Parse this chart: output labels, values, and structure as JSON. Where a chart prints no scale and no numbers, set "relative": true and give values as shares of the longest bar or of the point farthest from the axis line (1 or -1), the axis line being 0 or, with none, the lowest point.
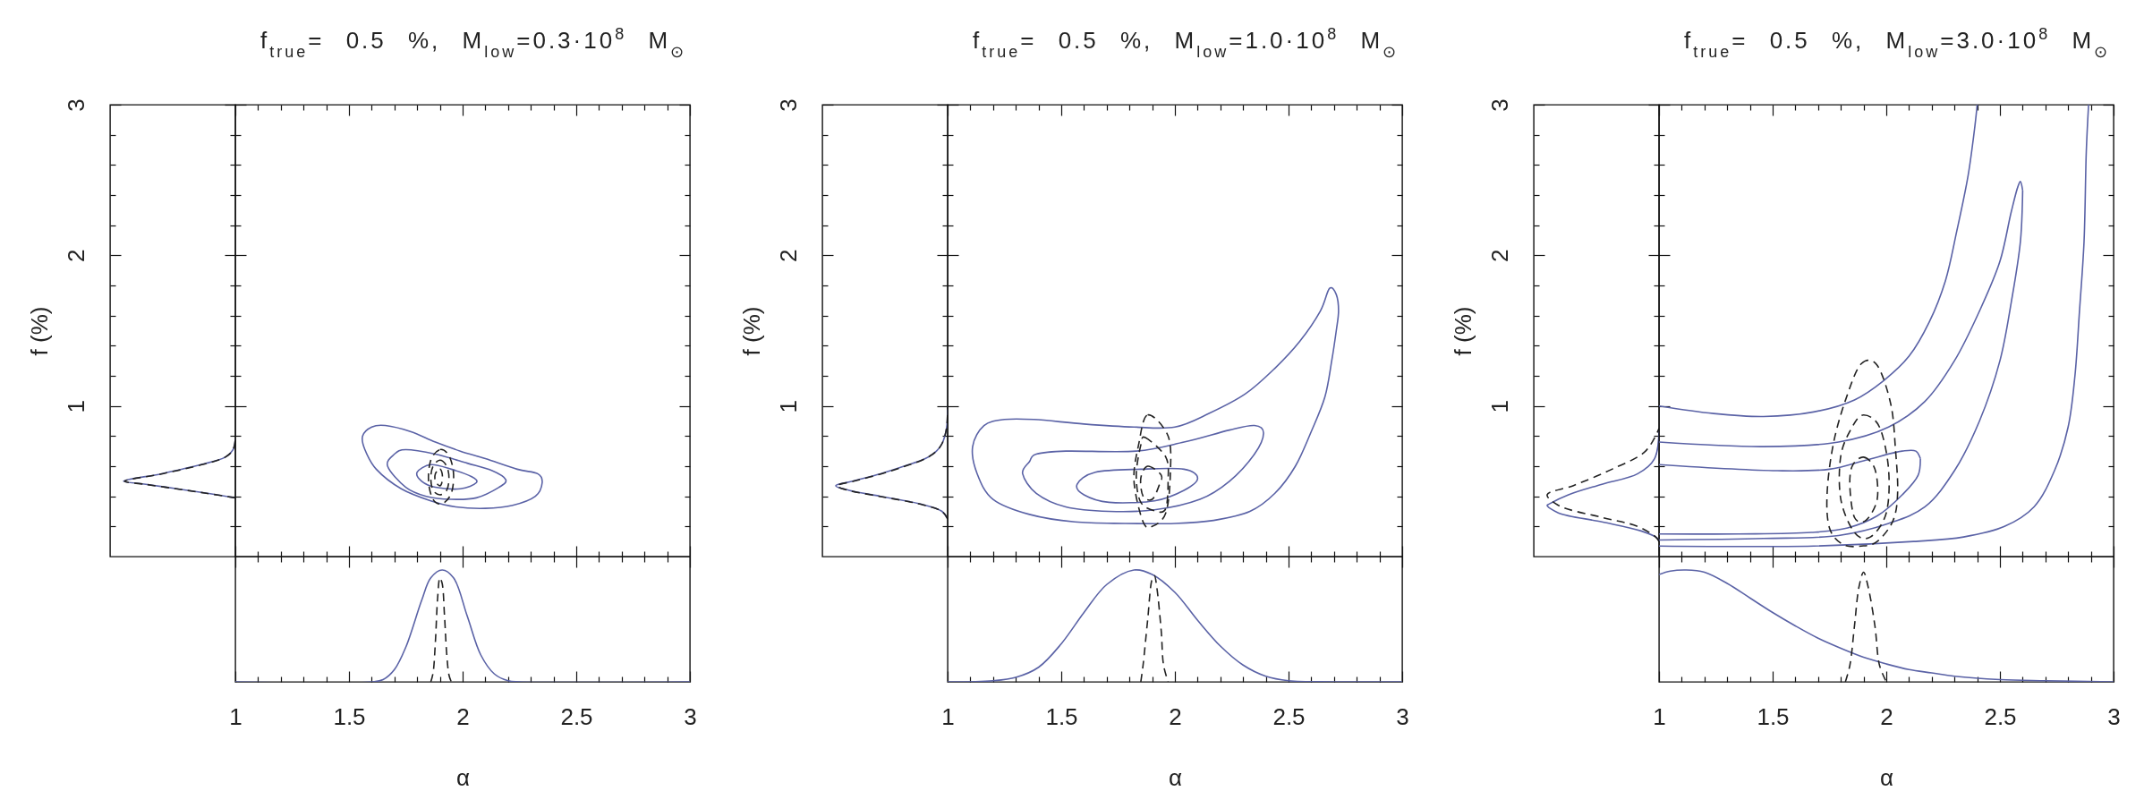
{
  "chart_data": [
    {
      "type": "line",
      "orientation": "horizontal",
      "relative": true,
      "ylabel": "f (%)",
      "tick_labels": "y",
      "ylim": [
        0,
        3
      ],
      "yticks": [
        {
          "value": 0.2,
          "label": null
        },
        {
          "value": 0.4,
          "label": null
        },
        {
          "value": 0.6,
          "label": null
        },
        {
          "value": 0.8,
          "label": null
        },
        1,
        {
          "value": 1.2,
          "label": null
        },
        {
          "value": 1.4,
          "label": null
        },
        {
          "value": 1.6,
          "label": null
        },
        {
          "value": 1.8,
          "label": null
        },
        2,
        {
          "value": 2.2,
          "label": null
        },
        {
          "value": 2.4,
          "label": null
        },
        {
          "value": 2.6,
          "label": null
        },
        {
          "value": 2.8,
          "label": null
        },
        3
      ],
      "series": [
        {
          "color": "#5a62a6",
          "line_style": "solid",
          "x": [
            0.39,
            0.42,
            0.45,
            0.48,
            0.5,
            0.55,
            0.61,
            0.66,
            0.71,
            0.78
          ],
          "values": [
            0,
            -0.25,
            -0.52,
            -0.8,
            -1,
            -0.66,
            -0.31,
            -0.09,
            -0.02,
            0
          ]
        },
        {
          "color": "#222222",
          "line_style": "dashed",
          "x": [
            0.39,
            0.42,
            0.45,
            0.48,
            0.5,
            0.55,
            0.61,
            0.66,
            0.71,
            0.78
          ],
          "values": [
            0,
            -0.26,
            -0.53,
            -0.81,
            -0.99,
            -0.65,
            -0.3,
            -0.09,
            -0.02,
            0
          ]
        }
      ]
    },
    {
      "type": "line",
      "title": "f$_{true}$= 0.5 %, M$_{low}$=0.3·10$^{8}$ M$_{⊙}$",
      "tick_labels": false,
      "xlim": [
        1,
        3
      ],
      "ylim": [
        0,
        3
      ],
      "xticks": [
        1,
        {
          "value": 1.1,
          "label": null
        },
        {
          "value": 1.2,
          "label": null
        },
        {
          "value": 1.3,
          "label": null
        },
        {
          "value": 1.4,
          "label": null
        },
        1.5,
        {
          "value": 1.6,
          "label": null
        },
        {
          "value": 1.7,
          "label": null
        },
        {
          "value": 1.8,
          "label": null
        },
        {
          "value": 1.9,
          "label": null
        },
        2,
        {
          "value": 2.1,
          "label": null
        },
        {
          "value": 2.2,
          "label": null
        },
        {
          "value": 2.3,
          "label": null
        },
        {
          "value": 2.4,
          "label": null
        },
        2.5,
        {
          "value": 2.6,
          "label": null
        },
        {
          "value": 2.7,
          "label": null
        },
        {
          "value": 2.8,
          "label": null
        },
        {
          "value": 2.9,
          "label": null
        },
        3
      ],
      "yticks": [
        {
          "value": 0.2,
          "label": null
        },
        {
          "value": 0.4,
          "label": null
        },
        {
          "value": 0.6,
          "label": null
        },
        {
          "value": 0.8,
          "label": null
        },
        1,
        {
          "value": 1.2,
          "label": null
        },
        {
          "value": 1.4,
          "label": null
        },
        {
          "value": 1.6,
          "label": null
        },
        {
          "value": 1.8,
          "label": null
        },
        2,
        {
          "value": 2.2,
          "label": null
        },
        {
          "value": 2.4,
          "label": null
        },
        {
          "value": 2.6,
          "label": null
        },
        {
          "value": 2.8,
          "label": null
        },
        3
      ]
    },
    {
      "type": "line",
      "relative": true,
      "xlabel": "α",
      "tick_labels": "x",
      "xlim": [
        1,
        3
      ],
      "xticks": [
        1,
        {
          "value": 1.1,
          "label": null
        },
        {
          "value": 1.2,
          "label": null
        },
        {
          "value": 1.3,
          "label": null
        },
        {
          "value": 1.4,
          "label": null
        },
        1.5,
        {
          "value": 1.6,
          "label": null
        },
        {
          "value": 1.7,
          "label": null
        },
        {
          "value": 1.8,
          "label": null
        },
        {
          "value": 1.9,
          "label": null
        },
        2,
        {
          "value": 2.1,
          "label": null
        },
        {
          "value": 2.2,
          "label": null
        },
        {
          "value": 2.3,
          "label": null
        },
        {
          "value": 2.4,
          "label": null
        },
        2.5,
        {
          "value": 2.6,
          "label": null
        },
        {
          "value": 2.7,
          "label": null
        },
        {
          "value": 2.8,
          "label": null
        },
        {
          "value": 2.9,
          "label": null
        },
        3
      ],
      "series": [
        {
          "color": "#5a62a6",
          "line_style": "solid",
          "x": [
            1,
            1.6,
            1.65,
            1.7,
            1.75,
            1.82,
            1.86,
            1.91,
            1.96,
            2.02,
            2.08,
            2.14,
            2.2,
            2.25,
            3
          ],
          "values": [
            0,
            0,
            0.02,
            0.11,
            0.31,
            0.73,
            0.93,
            1,
            0.93,
            0.59,
            0.24,
            0.07,
            0.01,
            0,
            0
          ]
        },
        {
          "color": "#222222",
          "line_style": "dashed",
          "x": [
            1.86,
            1.87,
            1.88,
            1.89,
            1.9,
            1.91,
            1.92,
            1.93,
            1.94,
            1.95
          ],
          "values": [
            0,
            0.08,
            0.35,
            0.75,
            0.93,
            0.88,
            0.6,
            0.25,
            0.06,
            0
          ]
        }
      ]
    },
    {
      "type": "line",
      "orientation": "horizontal",
      "relative": true,
      "ylabel": "f (%)",
      "tick_labels": "y",
      "ylim": [
        0,
        3
      ],
      "yticks": [
        {
          "value": 0.2,
          "label": null
        },
        {
          "value": 0.4,
          "label": null
        },
        {
          "value": 0.6,
          "label": null
        },
        {
          "value": 0.8,
          "label": null
        },
        1,
        {
          "value": 1.2,
          "label": null
        },
        {
          "value": 1.4,
          "label": null
        },
        {
          "value": 1.6,
          "label": null
        },
        {
          "value": 1.8,
          "label": null
        },
        2,
        {
          "value": 2.2,
          "label": null
        },
        {
          "value": 2.4,
          "label": null
        },
        {
          "value": 2.6,
          "label": null
        },
        {
          "value": 2.8,
          "label": null
        },
        3
      ],
      "series": [
        {
          "color": "#5a62a6",
          "line_style": "solid",
          "x": [
            0.25,
            0.3,
            0.35,
            0.4,
            0.44,
            0.47,
            0.5,
            0.55,
            0.6,
            0.65,
            0.7,
            0.75,
            0.85,
            1
          ],
          "values": [
            0,
            -0.05,
            -0.25,
            -0.6,
            -0.88,
            -1,
            -0.85,
            -0.6,
            -0.39,
            -0.2,
            -0.1,
            -0.05,
            -0.01,
            0
          ]
        },
        {
          "color": "#222222",
          "line_style": "dashed",
          "x": [
            0.25,
            0.3,
            0.35,
            0.4,
            0.44,
            0.47,
            0.5,
            0.55,
            0.6,
            0.65,
            0.7,
            0.75,
            0.85,
            1
          ],
          "values": [
            0,
            -0.05,
            -0.26,
            -0.61,
            -0.89,
            -0.99,
            -0.84,
            -0.59,
            -0.38,
            -0.2,
            -0.1,
            -0.05,
            -0.01,
            0
          ]
        }
      ]
    },
    {
      "type": "line",
      "title": "f$_{true}$= 0.5 %, M$_{low}$=1.0·10$^{8}$ M$_{⊙}$",
      "tick_labels": false,
      "xlim": [
        1,
        3
      ],
      "ylim": [
        0,
        3
      ],
      "xticks": [
        1,
        {
          "value": 1.1,
          "label": null
        },
        {
          "value": 1.2,
          "label": null
        },
        {
          "value": 1.3,
          "label": null
        },
        {
          "value": 1.4,
          "label": null
        },
        1.5,
        {
          "value": 1.6,
          "label": null
        },
        {
          "value": 1.7,
          "label": null
        },
        {
          "value": 1.8,
          "label": null
        },
        {
          "value": 1.9,
          "label": null
        },
        2,
        {
          "value": 2.1,
          "label": null
        },
        {
          "value": 2.2,
          "label": null
        },
        {
          "value": 2.3,
          "label": null
        },
        {
          "value": 2.4,
          "label": null
        },
        2.5,
        {
          "value": 2.6,
          "label": null
        },
        {
          "value": 2.7,
          "label": null
        },
        {
          "value": 2.8,
          "label": null
        },
        {
          "value": 2.9,
          "label": null
        },
        3
      ],
      "yticks": [
        {
          "value": 0.2,
          "label": null
        },
        {
          "value": 0.4,
          "label": null
        },
        {
          "value": 0.6,
          "label": null
        },
        {
          "value": 0.8,
          "label": null
        },
        1,
        {
          "value": 1.2,
          "label": null
        },
        {
          "value": 1.4,
          "label": null
        },
        {
          "value": 1.6,
          "label": null
        },
        {
          "value": 1.8,
          "label": null
        },
        2,
        {
          "value": 2.2,
          "label": null
        },
        {
          "value": 2.4,
          "label": null
        },
        {
          "value": 2.6,
          "label": null
        },
        {
          "value": 2.8,
          "label": null
        },
        3
      ]
    },
    {
      "type": "line",
      "relative": true,
      "xlabel": "α",
      "tick_labels": "x",
      "xlim": [
        1,
        3
      ],
      "xticks": [
        1,
        {
          "value": 1.1,
          "label": null
        },
        {
          "value": 1.2,
          "label": null
        },
        {
          "value": 1.3,
          "label": null
        },
        {
          "value": 1.4,
          "label": null
        },
        1.5,
        {
          "value": 1.6,
          "label": null
        },
        {
          "value": 1.7,
          "label": null
        },
        {
          "value": 1.8,
          "label": null
        },
        {
          "value": 1.9,
          "label": null
        },
        2,
        {
          "value": 2.1,
          "label": null
        },
        {
          "value": 2.2,
          "label": null
        },
        {
          "value": 2.3,
          "label": null
        },
        {
          "value": 2.4,
          "label": null
        },
        2.5,
        {
          "value": 2.6,
          "label": null
        },
        {
          "value": 2.7,
          "label": null
        },
        {
          "value": 2.8,
          "label": null
        },
        {
          "value": 2.9,
          "label": null
        },
        3
      ],
      "series": [
        {
          "color": "#5a62a6",
          "line_style": "solid",
          "x": [
            1,
            1.2,
            1.3,
            1.4,
            1.5,
            1.6,
            1.7,
            1.82,
            1.9,
            2,
            2.1,
            2.2,
            2.3,
            2.4,
            2.5,
            2.7,
            3
          ],
          "values": [
            0,
            0.01,
            0.04,
            0.13,
            0.34,
            0.62,
            0.87,
            1,
            0.96,
            0.8,
            0.55,
            0.32,
            0.15,
            0.05,
            0.01,
            0,
            0
          ]
        },
        {
          "color": "#222222",
          "line_style": "dashed",
          "x": [
            1.85,
            1.86,
            1.88,
            1.9,
            1.91,
            1.92,
            1.94,
            1.95,
            1.97
          ],
          "values": [
            0,
            0.15,
            0.55,
            0.92,
            0.95,
            0.85,
            0.45,
            0.15,
            0
          ]
        }
      ]
    },
    {
      "type": "line",
      "orientation": "horizontal",
      "relative": true,
      "ylabel": "f (%)",
      "tick_labels": "y",
      "ylim": [
        0,
        3
      ],
      "yticks": [
        {
          "value": 0.2,
          "label": null
        },
        {
          "value": 0.4,
          "label": null
        },
        {
          "value": 0.6,
          "label": null
        },
        {
          "value": 0.8,
          "label": null
        },
        1,
        {
          "value": 1.2,
          "label": null
        },
        {
          "value": 1.4,
          "label": null
        },
        {
          "value": 1.6,
          "label": null
        },
        {
          "value": 1.8,
          "label": null
        },
        2,
        {
          "value": 2.2,
          "label": null
        },
        {
          "value": 2.4,
          "label": null
        },
        {
          "value": 2.6,
          "label": null
        },
        {
          "value": 2.8,
          "label": null
        },
        3
      ],
      "series": [
        {
          "color": "#5a62a6",
          "line_style": "solid",
          "x": [
            0.1,
            0.12,
            0.17,
            0.23,
            0.29,
            0.34,
            0.35,
            0.41,
            0.48,
            0.55,
            0.65,
            0.84
          ],
          "values": [
            0,
            -0.01,
            -0.16,
            -0.51,
            -0.9,
            -1,
            -0.98,
            -0.81,
            -0.51,
            -0.19,
            -0.04,
            0
          ]
        },
        {
          "color": "#222222",
          "line_style": "dashed",
          "x": [
            0.1,
            0.13,
            0.2,
            0.26,
            0.34,
            0.41,
            0.47,
            0.58,
            0.7,
            0.85
          ],
          "values": [
            0,
            -0.03,
            -0.19,
            -0.51,
            -0.9,
            -1,
            -0.77,
            -0.42,
            -0.12,
            0
          ]
        }
      ]
    },
    {
      "type": "line",
      "title": "f$_{true}$= 0.5 %, M$_{low}$=3.0·10$^{8}$ M$_{⊙}$",
      "tick_labels": false,
      "xlim": [
        1,
        3
      ],
      "ylim": [
        0,
        3
      ],
      "xticks": [
        1,
        {
          "value": 1.1,
          "label": null
        },
        {
          "value": 1.2,
          "label": null
        },
        {
          "value": 1.3,
          "label": null
        },
        {
          "value": 1.4,
          "label": null
        },
        1.5,
        {
          "value": 1.6,
          "label": null
        },
        {
          "value": 1.7,
          "label": null
        },
        {
          "value": 1.8,
          "label": null
        },
        {
          "value": 1.9,
          "label": null
        },
        2,
        {
          "value": 2.1,
          "label": null
        },
        {
          "value": 2.2,
          "label": null
        },
        {
          "value": 2.3,
          "label": null
        },
        {
          "value": 2.4,
          "label": null
        },
        2.5,
        {
          "value": 2.6,
          "label": null
        },
        {
          "value": 2.7,
          "label": null
        },
        {
          "value": 2.8,
          "label": null
        },
        {
          "value": 2.9,
          "label": null
        },
        3
      ],
      "yticks": [
        {
          "value": 0.2,
          "label": null
        },
        {
          "value": 0.4,
          "label": null
        },
        {
          "value": 0.6,
          "label": null
        },
        {
          "value": 0.8,
          "label": null
        },
        1,
        {
          "value": 1.2,
          "label": null
        },
        {
          "value": 1.4,
          "label": null
        },
        {
          "value": 1.6,
          "label": null
        },
        {
          "value": 1.8,
          "label": null
        },
        2,
        {
          "value": 2.2,
          "label": null
        },
        {
          "value": 2.4,
          "label": null
        },
        {
          "value": 2.6,
          "label": null
        },
        {
          "value": 2.8,
          "label": null
        },
        3
      ],
      "series": [
        {
          "color": "#5a62a6",
          "line_style": "solid",
          "x": [
            1,
            1.24,
            1.46,
            1.68,
            1.86,
            1.99,
            2.1,
            2.19,
            2.26,
            2.31,
            2.36,
            2.39,
            2.4
          ],
          "values": [
            1,
            0.95,
            0.93,
            0.96,
            1.04,
            1.17,
            1.33,
            1.56,
            1.83,
            2.16,
            2.53,
            2.86,
            3
          ]
        },
        {
          "color": "#5a62a6",
          "line_style": "solid",
          "x": [
            1,
            1.68,
            2.12,
            2.34,
            2.52,
            2.65,
            2.74,
            2.8,
            2.83,
            2.85,
            2.87,
            2.88,
            2.89
          ],
          "values": [
            0.07,
            0.07,
            0.1,
            0.13,
            0.2,
            0.33,
            0.57,
            0.86,
            1.2,
            1.63,
            2.09,
            2.69,
            3
          ]
        },
        {
          "color": "#5a62a6",
          "line_style": "solid",
          "x": [
            1,
            1.46,
            1.79,
            2.01,
            2.17,
            2.3,
            2.41,
            2.5,
            2.55,
            2.58,
            2.59,
            2.6
          ],
          "values": [
            0.76,
            0.73,
            0.76,
            0.86,
            1.03,
            1.3,
            1.63,
            1.96,
            2.29,
            2.46,
            2.49,
            2.43
          ]
        },
        {
          "color": "#5a62a6",
          "line_style": "solid",
          "x": [
            1,
            1.46,
            1.79,
            2.01,
            2.17,
            2.3,
            2.41,
            2.5,
            2.55,
            2.59,
            2.6
          ],
          "values": [
            0.11,
            0.12,
            0.14,
            0.22,
            0.33,
            0.57,
            0.9,
            1.3,
            1.69,
            2.09,
            2.43
          ]
        },
        {
          "color": "#5a62a6",
          "line_style": "solid",
          "x": [
            1,
            1.52,
            1.75,
            1.91,
            2.07,
            2.13,
            2.15
          ],
          "values": [
            0.61,
            0.57,
            0.58,
            0.64,
            0.7,
            0.7,
            0.65
          ]
        },
        {
          "color": "#5a62a6",
          "line_style": "solid",
          "x": [
            1,
            1.35,
            1.67,
            1.83,
            1.96,
            2.07,
            2.14,
            2.15
          ],
          "values": [
            0.15,
            0.15,
            0.16,
            0.19,
            0.27,
            0.41,
            0.54,
            0.65
          ]
        }
      ]
    },
    {
      "type": "line",
      "relative": true,
      "xlabel": "α",
      "tick_labels": "x",
      "xlim": [
        1,
        3
      ],
      "xticks": [
        1,
        {
          "value": 1.1,
          "label": null
        },
        {
          "value": 1.2,
          "label": null
        },
        {
          "value": 1.3,
          "label": null
        },
        {
          "value": 1.4,
          "label": null
        },
        1.5,
        {
          "value": 1.6,
          "label": null
        },
        {
          "value": 1.7,
          "label": null
        },
        {
          "value": 1.8,
          "label": null
        },
        {
          "value": 1.9,
          "label": null
        },
        2,
        {
          "value": 2.1,
          "label": null
        },
        {
          "value": 2.2,
          "label": null
        },
        {
          "value": 2.3,
          "label": null
        },
        {
          "value": 2.4,
          "label": null
        },
        2.5,
        {
          "value": 2.6,
          "label": null
        },
        {
          "value": 2.7,
          "label": null
        },
        {
          "value": 2.8,
          "label": null
        },
        {
          "value": 2.9,
          "label": null
        },
        3
      ],
      "series": [
        {
          "color": "#5a62a6",
          "line_style": "solid",
          "x": [
            1,
            1.05,
            1.12,
            1.2,
            1.3,
            1.4,
            1.5,
            1.6,
            1.7,
            1.8,
            1.9,
            2,
            2.1,
            2.2,
            2.3,
            2.5,
            2.7,
            3
          ],
          "values": [
            0.96,
            0.99,
            1,
            0.98,
            0.88,
            0.75,
            0.62,
            0.5,
            0.39,
            0.3,
            0.22,
            0.16,
            0.11,
            0.08,
            0.05,
            0.02,
            0.01,
            0
          ]
        },
        {
          "color": "#222222",
          "line_style": "dashed",
          "x": [
            1.82,
            1.84,
            1.86,
            1.88,
            1.9,
            1.92,
            1.95,
            1.97,
            2
          ],
          "values": [
            0,
            0.15,
            0.5,
            0.85,
            0.98,
            0.85,
            0.5,
            0.15,
            0
          ]
        }
      ]
    }
  ]
}
